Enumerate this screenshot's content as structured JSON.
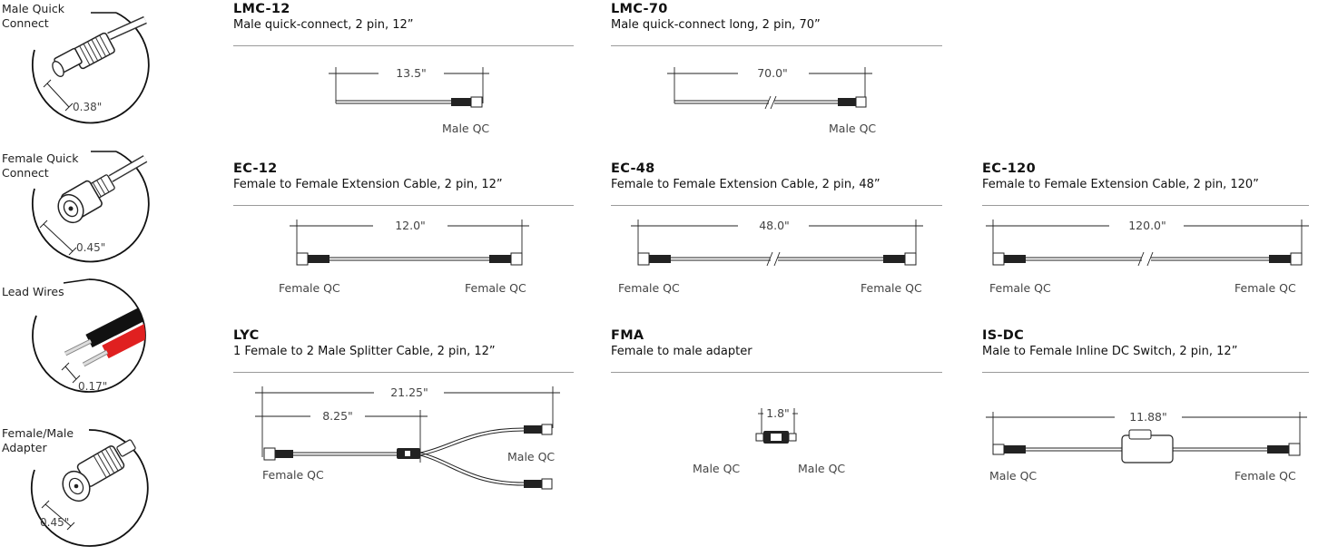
{
  "legend": [
    {
      "label": "Male Quick\nConnect",
      "dimension": "0.38\""
    },
    {
      "label": "Female Quick\nConnect",
      "dimension": "0.45\""
    },
    {
      "label": "Lead Wires",
      "dimension": "0.17\""
    },
    {
      "label": "Female/Male\nAdapter",
      "dimension": "0.45\""
    }
  ],
  "products": {
    "lmc12": {
      "code": "LMC-12",
      "description": "Male quick-connect, 2 pin, 12”",
      "dimension": "13.5\"",
      "right_label": "Male QC"
    },
    "lmc70": {
      "code": "LMC-70",
      "description": "Male quick-connect long, 2 pin, 70”",
      "dimension": "70.0\"",
      "right_label": "Male QC"
    },
    "ec12": {
      "code": "EC-12",
      "description": "Female to Female Extension Cable, 2 pin, 12”",
      "dimension": "12.0\"",
      "left_label": "Female QC",
      "right_label": "Female QC"
    },
    "ec48": {
      "code": "EC-48",
      "description": "Female to Female Extension Cable, 2 pin, 48”",
      "dimension": "48.0\"",
      "left_label": "Female QC",
      "right_label": "Female QC"
    },
    "ec120": {
      "code": "EC-120",
      "description": "Female to Female Extension Cable, 2 pin, 120”",
      "dimension": "120.0\"",
      "left_label": "Female QC",
      "right_label": "Female QC"
    },
    "lyc": {
      "code": "LYC",
      "description": "1 Female to 2 Male Splitter Cable, 2 pin, 12”",
      "dimension": "21.25\"",
      "dimension2": "8.25\"",
      "left_label": "Female QC",
      "right_label": "Male QC"
    },
    "fma": {
      "code": "FMA",
      "description": "Female to male adapter",
      "dimension": "1.8\"",
      "left_label": "Male QC",
      "right_label": "Male QC"
    },
    "isdc": {
      "code": "IS-DC",
      "description": "Male to Female Inline DC Switch, 2 pin, 12”",
      "dimension": "11.88\"",
      "left_label": "Male QC",
      "right_label": "Female QC"
    }
  }
}
